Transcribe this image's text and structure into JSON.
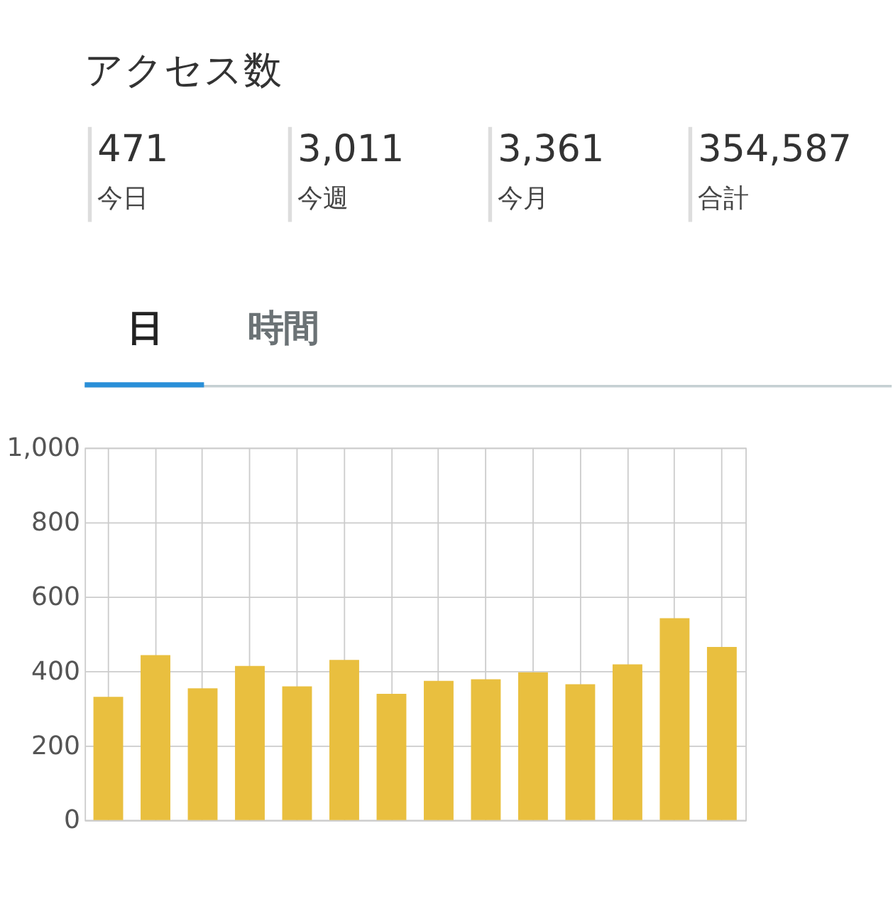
{
  "chart_data": [
    {
      "type": "other",
      "title": "アクセス数",
      "annotations": [
        "471",
        "今日",
        "3,011",
        "今週",
        "3,361",
        "今月",
        "354,587",
        "合計",
        "日",
        "時間"
      ]
    },
    {
      "type": "bar",
      "categories": [
        null,
        null,
        null,
        null,
        null,
        null,
        null,
        null,
        null,
        null,
        null,
        null,
        null,
        null
      ],
      "values": [
        331,
        443,
        354,
        414,
        359,
        430,
        339,
        374,
        378,
        397,
        365,
        418,
        542,
        465
      ],
      "color": "#e9bf3f",
      "ylim": [
        0,
        1000
      ],
      "yticks": [
        0,
        200,
        400,
        600,
        800,
        {
          "value": 1000,
          "label": "1,000"
        }
      ],
      "grid": true,
      "tick_labels": "y"
    }
  ]
}
